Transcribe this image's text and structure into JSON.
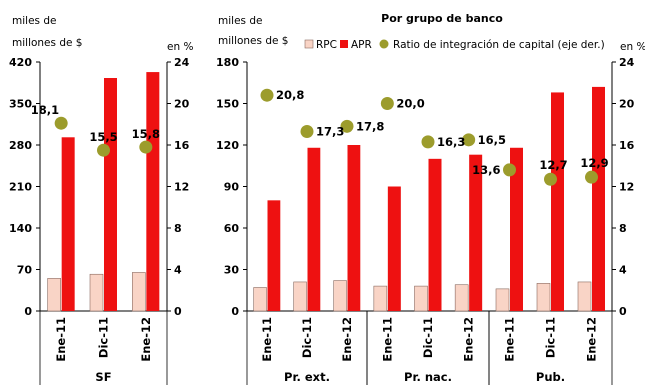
{
  "chart_data": [
    {
      "type": "bar",
      "panel": "sf",
      "title": "",
      "ylabel_left": [
        "miles de",
        "millones de $"
      ],
      "ylabel_right": "en %",
      "left_axis": {
        "min": 0,
        "max": 420,
        "ticks": [
          0,
          70,
          140,
          210,
          280,
          350,
          420
        ]
      },
      "right_axis": {
        "min": 0,
        "max": 24,
        "ticks": [
          0,
          4,
          8,
          12,
          16,
          20,
          24
        ]
      },
      "groups": [
        {
          "label": "SF",
          "categories": [
            "Ene-11",
            "Dic-11",
            "Ene-12"
          ],
          "series": [
            {
              "name": "RPC",
              "axis": "left",
              "values": [
                55,
                62,
                65
              ]
            },
            {
              "name": "APR",
              "axis": "left",
              "values": [
                293,
                393,
                403
              ]
            },
            {
              "name": "Ratio de integración de capital (eje der.)",
              "axis": "right",
              "values": [
                18.1,
                15.5,
                15.8
              ],
              "labels": [
                "18,1",
                "15,5",
                "15,8"
              ]
            }
          ]
        }
      ]
    },
    {
      "type": "bar",
      "panel": "bancos",
      "title": "Por grupo de banco",
      "ylabel_left": [
        "miles de",
        "millones de $"
      ],
      "ylabel_right": "en %",
      "left_axis": {
        "min": 0,
        "max": 180,
        "ticks": [
          0,
          30,
          60,
          90,
          120,
          150,
          180
        ]
      },
      "right_axis": {
        "min": 0,
        "max": 24,
        "ticks": [
          0,
          4,
          8,
          12,
          16,
          20,
          24
        ]
      },
      "legend": {
        "position": "top",
        "items": [
          {
            "name": "RPC",
            "color": "#f9d4c6"
          },
          {
            "name": "APR",
            "color": "#ee1111"
          },
          {
            "name": "Ratio de integración de capital (eje der.)",
            "color": "#9c9c2c"
          }
        ]
      },
      "groups": [
        {
          "label": "Pr. ext.",
          "categories": [
            "Ene-11",
            "Dic-11",
            "Ene-12"
          ],
          "series": [
            {
              "name": "RPC",
              "axis": "left",
              "values": [
                17,
                21,
                22
              ]
            },
            {
              "name": "APR",
              "axis": "left",
              "values": [
                80,
                118,
                120
              ]
            },
            {
              "name": "Ratio de integración de capital (eje der.)",
              "axis": "right",
              "values": [
                20.8,
                17.3,
                17.8
              ],
              "labels": [
                "20,8",
                "17,3",
                "17,8"
              ]
            }
          ]
        },
        {
          "label": "Pr. nac.",
          "categories": [
            "Ene-11",
            "Dic-11",
            "Ene-12"
          ],
          "series": [
            {
              "name": "RPC",
              "axis": "left",
              "values": [
                18,
                18,
                19
              ]
            },
            {
              "name": "APR",
              "axis": "left",
              "values": [
                90,
                110,
                113
              ]
            },
            {
              "name": "Ratio de integración de capital (eje der.)",
              "axis": "right",
              "values": [
                20.0,
                16.3,
                16.5
              ],
              "labels": [
                "20,0",
                "16,3",
                "16,5"
              ]
            }
          ]
        },
        {
          "label": "Pub.",
          "categories": [
            "Ene-11",
            "Dic-11",
            "Ene-12"
          ],
          "series": [
            {
              "name": "RPC",
              "axis": "left",
              "values": [
                16,
                20,
                21
              ]
            },
            {
              "name": "APR",
              "axis": "left",
              "values": [
                118,
                158,
                162
              ]
            },
            {
              "name": "Ratio de integración de capital (eje der.)",
              "axis": "right",
              "values": [
                13.6,
                12.7,
                12.9
              ],
              "labels": [
                "13,6",
                "12,7",
                "12,9"
              ]
            }
          ]
        }
      ]
    }
  ],
  "colors": {
    "rpc": "#f9d4c6",
    "rpc_stroke": "#8a6a60",
    "apr": "#ee1111",
    "ratio": "#9c9c2c"
  }
}
